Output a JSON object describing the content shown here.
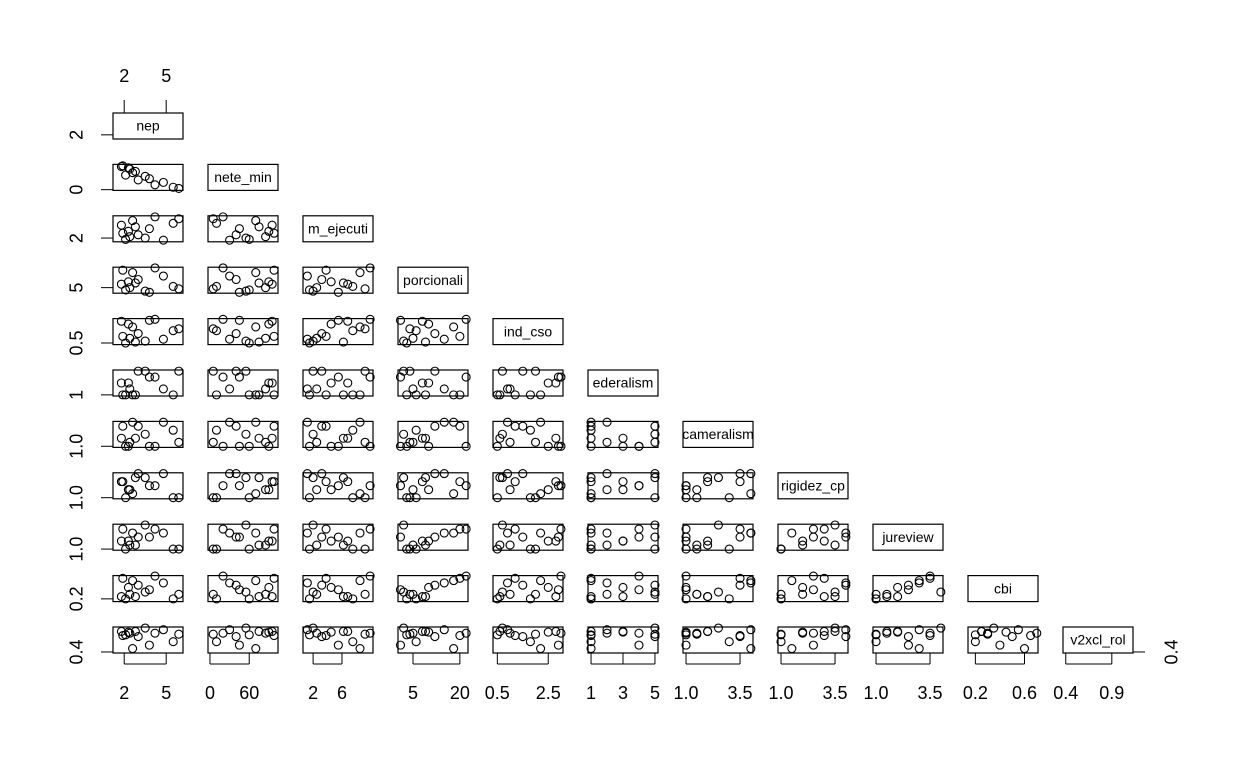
{
  "chart_data": {
    "type": "scatter_matrix",
    "variables": [
      {
        "label": "nep",
        "lim": [
          1.2,
          6.2
        ],
        "xticks": [
          2,
          5
        ],
        "yticks": [
          2
        ],
        "top_ticks": [
          2,
          5
        ],
        "values": [
          2.1,
          2.4,
          1.8,
          3.0,
          2.6,
          4.2,
          3.5,
          5.5,
          2.3,
          4.8,
          5.9,
          1.9,
          3.8,
          2.8
        ]
      },
      {
        "label": "nete_min",
        "lim": [
          -3,
          104
        ],
        "xticks": [
          0,
          60
        ],
        "yticks": [
          0
        ],
        "values": [
          60,
          85,
          95,
          40,
          70,
          20,
          55,
          10,
          90,
          30,
          5,
          98,
          45,
          75
        ]
      },
      {
        "label": "m_ejecuti",
        "lim": [
          0.6,
          10.3
        ],
        "xticks": [
          2,
          6
        ],
        "yticks": [
          2
        ],
        "values": [
          1.5,
          2.5,
          6.8,
          3.2,
          8.5,
          9.9,
          2.0,
          7.5,
          4.5,
          1.2,
          9.2,
          3.8,
          5.5,
          6.2
        ]
      },
      {
        "label": "porcionali",
        "lim": [
          0.2,
          22.6
        ],
        "xticks": [
          5,
          20
        ],
        "yticks": [
          5
        ],
        "values": [
          3,
          5,
          8,
          12,
          18,
          22,
          2,
          6,
          10,
          15,
          4,
          20,
          1,
          9
        ]
      },
      {
        "label": "ind_cso",
        "lim": [
          0.33,
          3.08
        ],
        "xticks": [
          0.5,
          2.5
        ],
        "yticks": [
          0.5
        ],
        "values": [
          0.5,
          1.0,
          2.8,
          1.5,
          2.2,
          3.0,
          0.7,
          1.8,
          2.5,
          0.9,
          2.0,
          1.2,
          2.9,
          0.6
        ]
      },
      {
        "label": "ederalism",
        "lim": [
          0.81,
          5.19
        ],
        "xticks": [
          1,
          3,
          5
        ],
        "yticks": [
          1
        ],
        "values": [
          1,
          2,
          3,
          5,
          1,
          4,
          5,
          1,
          3,
          2,
          5,
          1,
          4,
          1
        ]
      },
      {
        "label": "cameralism",
        "lim": [
          0.86,
          4.1
        ],
        "xticks": [
          {
            "value": 1,
            "label": "1.0"
          },
          3.5
        ],
        "yticks": [
          {
            "value": 1,
            "label": "1.0"
          }
        ],
        "values": [
          1,
          1.5,
          2,
          3.5,
          4,
          1,
          2.5,
          3,
          1,
          4,
          1.5,
          3.5,
          1,
          2
        ]
      },
      {
        "label": "rigidez_cp",
        "lim": [
          0.86,
          4.1
        ],
        "xticks": [
          {
            "value": 1,
            "label": "1.0"
          },
          3.5
        ],
        "yticks": [
          {
            "value": 1,
            "label": "1.0"
          }
        ],
        "values": [
          1,
          2,
          3,
          4,
          1.5,
          2.5,
          3.5,
          1,
          2,
          4,
          1,
          3,
          2.5,
          3.5
        ]
      },
      {
        "label": "jureview",
        "lim": [
          0.86,
          4.1
        ],
        "xticks": [
          {
            "value": 1,
            "label": "1.0"
          },
          3.5
        ],
        "yticks": [
          {
            "value": 1,
            "label": "1.0"
          }
        ],
        "values": [
          1,
          1.5,
          2,
          2.5,
          3,
          3.5,
          4,
          1,
          2,
          3,
          1,
          3.5,
          2.5,
          1.5
        ]
      },
      {
        "label": "cbi",
        "lim": [
          0.14,
          0.71
        ],
        "xticks": [
          0.2,
          0.6
        ],
        "yticks": [
          0.2
        ],
        "values": [
          0.2,
          0.3,
          0.25,
          0.5,
          0.6,
          0.7,
          0.35,
          0.2,
          0.45,
          0.55,
          0.3,
          0.65,
          0.4,
          0.25
        ]
      },
      {
        "label": "v2xcl_rol",
        "lim": [
          0.37,
          1.13
        ],
        "xticks": [
          0.4,
          0.9
        ],
        "yticks": [
          0.4
        ],
        "right_ticks": [
          0.4
        ],
        "values": [
          0.9,
          0.95,
          1.0,
          0.85,
          0.5,
          0.95,
          1.1,
          0.7,
          0.98,
          1.05,
          0.92,
          0.88,
          0.6,
          1.0
        ]
      }
    ]
  }
}
